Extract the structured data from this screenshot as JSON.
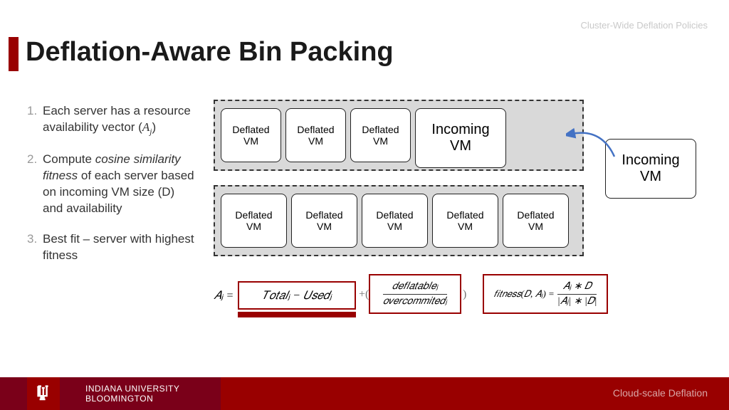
{
  "header": {
    "tag": "Cluster-Wide Deflation Policies"
  },
  "title": "Deflation-Aware Bin Packing",
  "accent_color": "#990000",
  "list": [
    {
      "num": "1.",
      "html": "Each server has a resource availability vector (𝐴<sub>𝑗</sub>)"
    },
    {
      "num": "2.",
      "html": "Compute <i>cosine similarity fitness</i> of each server based on incoming VM size (D) and availability"
    },
    {
      "num": "3.",
      "html": "Best fit – server with highest fitness"
    }
  ],
  "diagram": {
    "server1": {
      "boxes": [
        {
          "label": "Deflated VM",
          "cls": "vm-small"
        },
        {
          "label": "Deflated VM",
          "cls": "vm-small"
        },
        {
          "label": "Deflated VM",
          "cls": "vm-small"
        },
        {
          "label": "Incoming VM",
          "cls": "vm-big"
        }
      ]
    },
    "server2": {
      "boxes": [
        {
          "label": "Deflated VM",
          "cls": "vm-narrow"
        },
        {
          "label": "Deflated VM",
          "cls": "vm-narrow"
        },
        {
          "label": "Deflated VM",
          "cls": "vm-narrow"
        },
        {
          "label": "Deflated VM",
          "cls": "vm-narrow"
        },
        {
          "label": "Deflated VM",
          "cls": "vm-narrow"
        }
      ]
    },
    "external": {
      "label": "Incoming VM"
    },
    "arrow_color": "#4472c4"
  },
  "formulas": {
    "aj_lhs": "𝐴ⱼ =",
    "box1": "𝑇𝑜𝑡𝑎𝑙ⱼ − 𝑈𝑠𝑒𝑑ⱼ",
    "plus": "+",
    "box2_num": "𝑑𝑒𝑓𝑙𝑎𝑡𝑎𝑏𝑙𝑒ⱼ",
    "box2_den": "𝑜𝑣𝑒𝑟𝑐𝑜𝑚𝑚𝑖𝑡𝑒𝑑ⱼ",
    "box3_lhs": "𝑓𝑖𝑡𝑛𝑒𝑠𝑠(𝐷, 𝐴ⱼ) =",
    "box3_num": "𝐴ⱼ ∗ 𝐷",
    "box3_den": "|𝐴ⱼ| ∗ |𝐷|"
  },
  "footer": {
    "logo": "Ψ",
    "org": "INDIANA UNIVERSITY BLOOMINGTON",
    "right": "Cloud-scale Deflation"
  }
}
